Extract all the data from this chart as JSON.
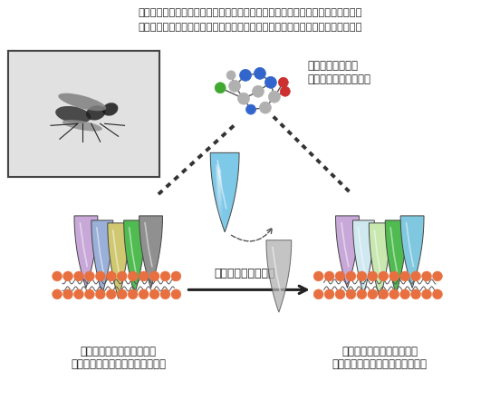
{
  "title_line1": "サブユニット遺伝子の発現量の抑制や２つの異なるサブユニットの置換によって",
  "title_line2": "ニコチン性アセチルコリン受容体のネオニコチノイド感受性が高まる場合がある",
  "molecule_label1": "ネオニコチノイド",
  "molecule_label2": "（イミダクロブリド）",
  "subunit_label": "サブユニットの置換",
  "left_label1": "ネオニコチノイド低感受性",
  "left_label2": "ニコチン性アセチルコリン受容体",
  "right_label1": "ネオニコチノイド高感受性",
  "right_label2": "ニコチン性アセチルコリン受容体",
  "text_color": "#222222",
  "receptor_colors_left": [
    "#c8a8d8",
    "#9ab0d8",
    "#d0c870",
    "#50bb50",
    "#909090"
  ],
  "receptor_colors_right": [
    "#c8a8d8",
    "#d0e8f0",
    "#c8e8b0",
    "#50bb50",
    "#80c8e0"
  ],
  "membrane_dot_color": "#e87040",
  "subunit_blue_color": "#7ec8e8",
  "subunit_gray_color": "#b0b0b0",
  "figsize": [
    5.52,
    4.42
  ],
  "dpi": 100
}
